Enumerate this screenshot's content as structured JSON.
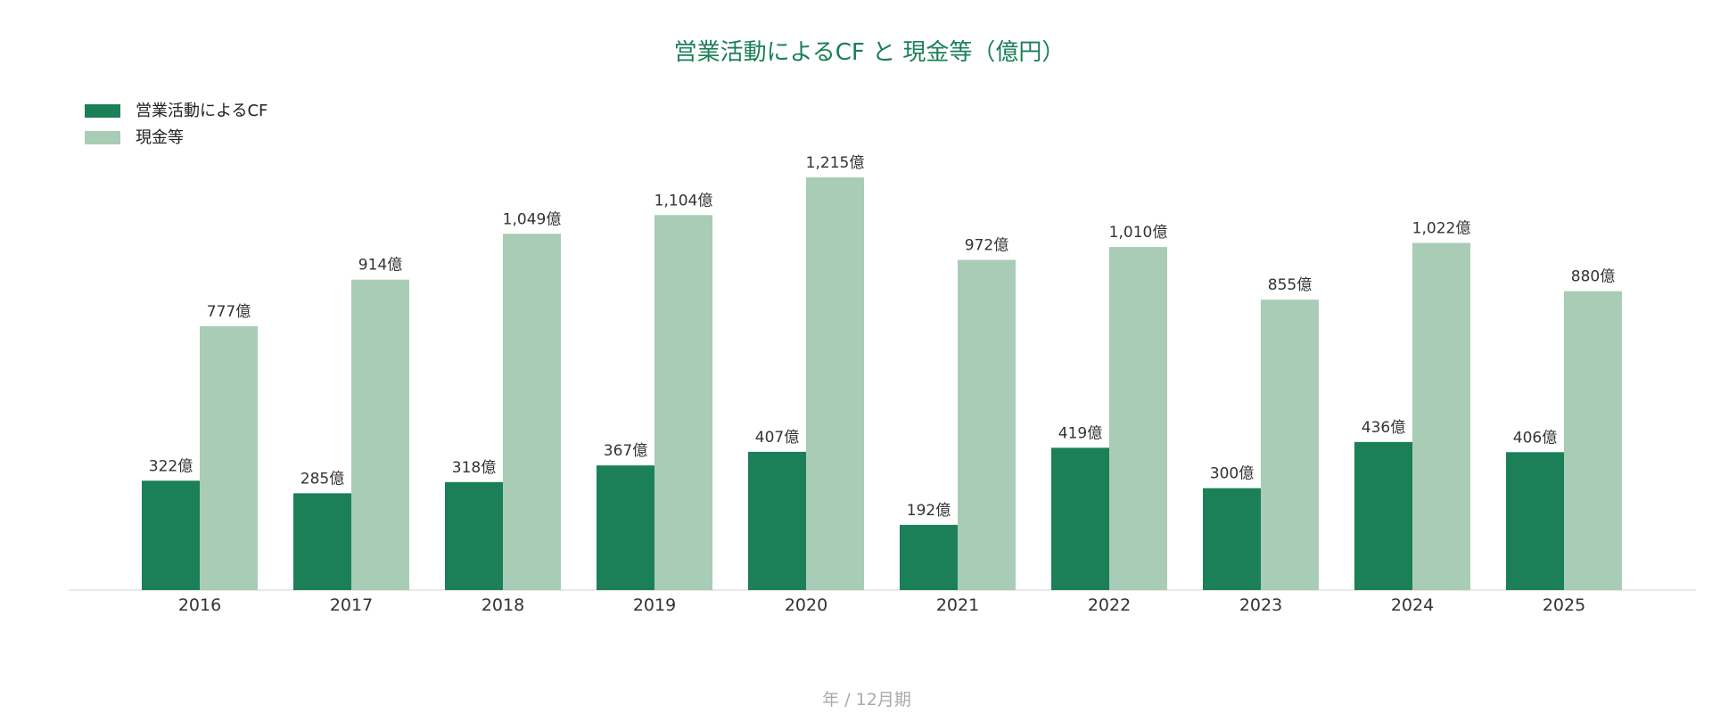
{
  "chart_data": {
    "type": "bar",
    "title": "営業活動によるCF と 現金等（億円）",
    "xlabel": "年 / 12月期",
    "ylabel": "",
    "categories": [
      "2016",
      "2017",
      "2018",
      "2019",
      "2020",
      "2021",
      "2022",
      "2023",
      "2024",
      "2025"
    ],
    "series": [
      {
        "name": "営業活動によるCF",
        "color": "#1b7f57",
        "values": [
          322,
          285,
          318,
          367,
          407,
          192,
          419,
          300,
          436,
          406
        ],
        "labels": [
          "322億",
          "285億",
          "318億",
          "367億",
          "407億",
          "192億",
          "419億",
          "300億",
          "436億",
          "406億"
        ]
      },
      {
        "name": "現金等",
        "color": "#a8ccb5",
        "values": [
          777,
          914,
          1049,
          1104,
          1215,
          972,
          1010,
          855,
          1022,
          880
        ],
        "labels": [
          "777億",
          "914億",
          "1,049億",
          "1,104億",
          "1,215億",
          "972億",
          "1,010億",
          "855億",
          "1,022億",
          "880億"
        ]
      }
    ],
    "ylim": [
      0,
      1215
    ],
    "grid": false,
    "legend_position": "top-left"
  }
}
